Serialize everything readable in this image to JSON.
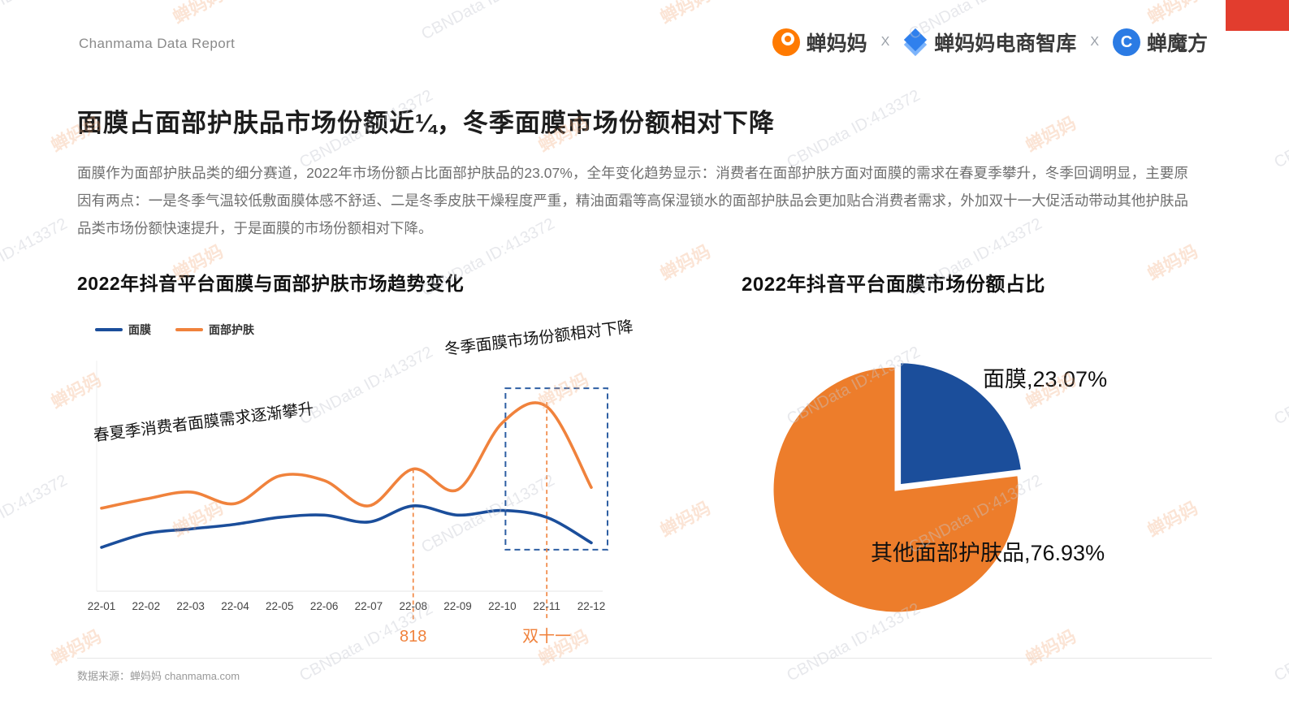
{
  "header": {
    "report_label": "Chanmama Data Report",
    "separator": "X",
    "brands": [
      {
        "name": "蝉妈妈"
      },
      {
        "name": "蝉妈妈电商智库"
      },
      {
        "name": "蝉魔方"
      }
    ]
  },
  "page": {
    "title": "面膜占面部护肤品市场份额近¼，冬季面膜市场份额相对下降",
    "body": "面膜作为面部护肤品类的细分赛道，2022年市场份额占比面部护肤品的23.07%，全年变化趋势显示：消费者在面部护肤方面对面膜的需求在春夏季攀升，冬季回调明显，主要原因有两点：一是冬季气温较低敷面膜体感不舒适、二是冬季皮肤干燥程度严重，精油面霜等高保湿锁水的面部护肤品会更加贴合消费者需求，外加双十一大促活动带动其他护肤品品类市场份额快速提升，于是面膜的市场份额相对下降。",
    "footer": "数据来源：蝉妈妈  chanmama.com"
  },
  "watermark": {
    "id_text": "CBNData ID:413372",
    "brand": "蝉妈妈"
  },
  "colors": {
    "blue": "#1B4E9B",
    "orange": "#F0823C",
    "pie_orange": "#ED7D2B",
    "accent_red": "#E23D2E",
    "box_blue": "#2E5FA3"
  },
  "chart_data": [
    {
      "type": "line",
      "title": "2022年抖音平台面膜与面部护肤市场趋势变化",
      "categories": [
        "22-01",
        "22-02",
        "22-03",
        "22-04",
        "22-05",
        "22-06",
        "22-07",
        "22-08",
        "22-09",
        "22-10",
        "22-11",
        "22-12"
      ],
      "series": [
        {
          "name": "面膜",
          "color": "#1B4E9B",
          "values": [
            19,
            25,
            27,
            29,
            32,
            33,
            30,
            37,
            33,
            35,
            32,
            21
          ]
        },
        {
          "name": "面部护肤",
          "color": "#F0823C",
          "values": [
            36,
            40,
            43,
            38,
            50,
            48,
            37,
            53,
            44,
            73,
            80,
            45
          ]
        }
      ],
      "xlabel": "",
      "ylabel": "",
      "grid": false,
      "legend_position": "top-left",
      "annotations": [
        "春夏季消费者面膜需求逐渐攀升",
        "冬季面膜市场份额相对下降"
      ],
      "event_markers": [
        {
          "label": "818",
          "category": "22-08",
          "line_top_value": 53
        },
        {
          "label": "双十一",
          "category": "22-11",
          "line_top_value": 82
        }
      ],
      "highlight_box": {
        "from": "22-10",
        "to": "22-12",
        "top_value": 88,
        "bottom_value": 18
      }
    },
    {
      "type": "pie",
      "title": "2022年抖音平台面膜市场份额占比",
      "start_angle_deg": -90,
      "direction": "clockwise",
      "slices": [
        {
          "label": "面膜",
          "value": 23.07,
          "display": "面膜,23.07%",
          "color": "#1B4E9B",
          "explode": 7
        },
        {
          "label": "其他面部护肤品",
          "value": 76.93,
          "display": "其他面部护肤品,76.93%",
          "color": "#ED7D2B",
          "explode": 0
        }
      ]
    }
  ]
}
